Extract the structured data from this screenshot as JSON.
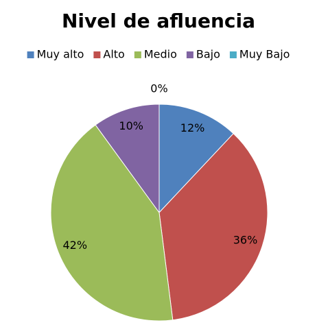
{
  "chart_data": {
    "type": "pie",
    "title": "Nivel de afluencia",
    "categories": [
      "Muy alto",
      "Alto",
      "Medio",
      "Bajo",
      "Muy Bajo"
    ],
    "values": [
      12,
      36,
      42,
      10,
      0
    ],
    "value_labels": [
      "12%",
      "36%",
      "42%",
      "10%",
      "0%"
    ],
    "colors": [
      "#4f81bd",
      "#c0504d",
      "#9bbb59",
      "#8064a2",
      "#4bacc6"
    ],
    "legend": "top"
  }
}
